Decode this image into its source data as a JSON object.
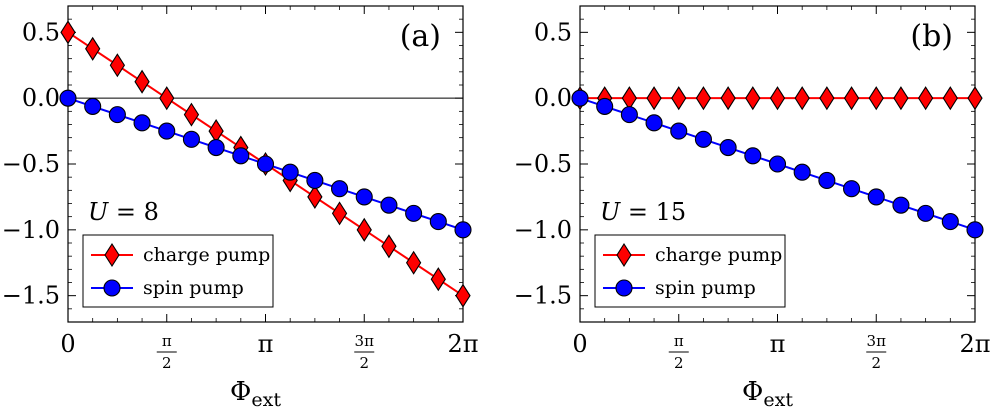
{
  "chart_data": [
    {
      "type": "line",
      "panel_label": "(a)",
      "param_label": "U = 8",
      "param_name": "U",
      "param_value": "8",
      "xlabel": "Φext",
      "xlabel_main": "Φ",
      "xlabel_sub": "ext",
      "ylabel": "",
      "xlim": [
        0,
        6.2832
      ],
      "ylim": [
        -1.7,
        0.7
      ],
      "x_ticks": [
        {
          "value": 0,
          "label": "0"
        },
        {
          "value": 1.5708,
          "label": "π/2",
          "num": "π",
          "den": "2"
        },
        {
          "value": 3.1416,
          "label": "π"
        },
        {
          "value": 4.7124,
          "label": "3π/2",
          "num": "3π",
          "den": "2"
        },
        {
          "value": 6.2832,
          "label": "2π"
        }
      ],
      "y_ticks": [
        {
          "value": 0.5,
          "label": "0.5"
        },
        {
          "value": 0.0,
          "label": "0.0"
        },
        {
          "value": -0.5,
          "label": "−0.5"
        },
        {
          "value": -1.0,
          "label": "−1.0"
        },
        {
          "value": -1.5,
          "label": "−1.5"
        }
      ],
      "zero_line": true,
      "legend_position": "bottom-left",
      "series": [
        {
          "name": "charge pump",
          "color": "#ff0000",
          "marker": "diamond",
          "x": [
            0,
            0.3927,
            0.7854,
            1.1781,
            1.5708,
            1.9635,
            2.3562,
            2.7489,
            3.1416,
            3.5343,
            3.927,
            4.3197,
            4.7124,
            5.1051,
            5.4978,
            5.8905,
            6.2832
          ],
          "values": [
            0.5,
            0.375,
            0.25,
            0.125,
            0.0,
            -0.125,
            -0.25,
            -0.375,
            -0.5,
            -0.625,
            -0.75,
            -0.875,
            -1.0,
            -1.125,
            -1.25,
            -1.375,
            -1.5
          ]
        },
        {
          "name": "spin pump",
          "color": "#0000ff",
          "marker": "circle",
          "x": [
            0,
            0.3927,
            0.7854,
            1.1781,
            1.5708,
            1.9635,
            2.3562,
            2.7489,
            3.1416,
            3.5343,
            3.927,
            4.3197,
            4.7124,
            5.1051,
            5.4978,
            5.8905,
            6.2832
          ],
          "values": [
            0.0,
            -0.0625,
            -0.125,
            -0.1875,
            -0.25,
            -0.3125,
            -0.375,
            -0.4375,
            -0.5,
            -0.5625,
            -0.625,
            -0.6875,
            -0.75,
            -0.8125,
            -0.875,
            -0.9375,
            -1.0
          ]
        }
      ]
    },
    {
      "type": "line",
      "panel_label": "(b)",
      "param_label": "U = 15",
      "param_name": "U",
      "param_value": "15",
      "xlabel": "Φext",
      "xlabel_main": "Φ",
      "xlabel_sub": "ext",
      "ylabel": "",
      "xlim": [
        0,
        6.2832
      ],
      "ylim": [
        -1.7,
        0.7
      ],
      "x_ticks": [
        {
          "value": 0,
          "label": "0"
        },
        {
          "value": 1.5708,
          "label": "π/2",
          "num": "π",
          "den": "2"
        },
        {
          "value": 3.1416,
          "label": "π"
        },
        {
          "value": 4.7124,
          "label": "3π/2",
          "num": "3π",
          "den": "2"
        },
        {
          "value": 6.2832,
          "label": "2π"
        }
      ],
      "y_ticks": [
        {
          "value": 0.5,
          "label": "0.5"
        },
        {
          "value": 0.0,
          "label": "0.0"
        },
        {
          "value": -0.5,
          "label": "−0.5"
        },
        {
          "value": -1.0,
          "label": "−1.0"
        },
        {
          "value": -1.5,
          "label": "−1.5"
        }
      ],
      "zero_line": false,
      "legend_position": "bottom-left",
      "series": [
        {
          "name": "charge pump",
          "color": "#ff0000",
          "marker": "diamond",
          "x": [
            0,
            0.3927,
            0.7854,
            1.1781,
            1.5708,
            1.9635,
            2.3562,
            2.7489,
            3.1416,
            3.5343,
            3.927,
            4.3197,
            4.7124,
            5.1051,
            5.4978,
            5.8905,
            6.2832
          ],
          "values": [
            0,
            0,
            0,
            0,
            0,
            0,
            0,
            0,
            0,
            0,
            0,
            0,
            0,
            0,
            0,
            0,
            0
          ]
        },
        {
          "name": "spin pump",
          "color": "#0000ff",
          "marker": "circle",
          "x": [
            0,
            0.3927,
            0.7854,
            1.1781,
            1.5708,
            1.9635,
            2.3562,
            2.7489,
            3.1416,
            3.5343,
            3.927,
            4.3197,
            4.7124,
            5.1051,
            5.4978,
            5.8905,
            6.2832
          ],
          "values": [
            0.0,
            -0.0625,
            -0.125,
            -0.1875,
            -0.25,
            -0.3125,
            -0.375,
            -0.4375,
            -0.5,
            -0.5625,
            -0.625,
            -0.6875,
            -0.75,
            -0.8125,
            -0.875,
            -0.9375,
            -1.0
          ]
        }
      ]
    }
  ]
}
